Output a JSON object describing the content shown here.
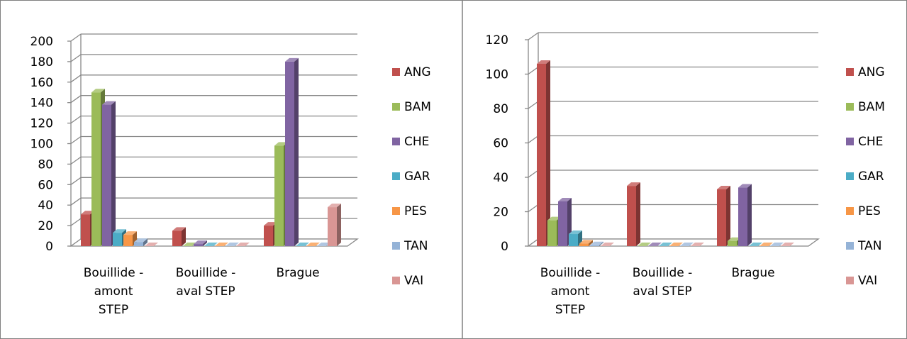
{
  "colors": {
    "ANG": "#C0504D",
    "BAM": "#9BBB59",
    "CHE": "#8064A2",
    "GAR": "#4BACC6",
    "PES": "#F79646",
    "TAN": "#95B3D7",
    "VAI": "#D99694"
  },
  "chart_data": [
    {
      "type": "bar",
      "three_d": true,
      "categories": [
        "Bouillide - amont STEP",
        "Bouillide - aval STEP",
        "Brague"
      ],
      "category_label_lines": [
        [
          "Bouillide -",
          "amont",
          "STEP"
        ],
        [
          "Bouillide -",
          "aval STEP"
        ],
        [
          "Brague"
        ]
      ],
      "ylim": [
        0,
        200
      ],
      "yticks": [
        0,
        20,
        40,
        60,
        80,
        100,
        120,
        140,
        160,
        180,
        200
      ],
      "grid": true,
      "legend_position": "right",
      "series": [
        {
          "name": "ANG",
          "values": [
            31,
            15,
            20
          ]
        },
        {
          "name": "BAM",
          "values": [
            150,
            0,
            98
          ]
        },
        {
          "name": "CHE",
          "values": [
            138,
            2,
            180
          ]
        },
        {
          "name": "GAR",
          "values": [
            13,
            0,
            0
          ]
        },
        {
          "name": "PES",
          "values": [
            11,
            0,
            0
          ]
        },
        {
          "name": "TAN",
          "values": [
            4,
            0,
            0
          ]
        },
        {
          "name": "VAI",
          "values": [
            0,
            0,
            38
          ]
        }
      ]
    },
    {
      "type": "bar",
      "three_d": true,
      "categories": [
        "Bouillide - amont STEP",
        "Bouillide - aval STEP",
        "Brague"
      ],
      "category_label_lines": [
        [
          "Bouillide -",
          "amont",
          "STEP"
        ],
        [
          "Bouillide -",
          "aval STEP"
        ],
        [
          "Brague"
        ]
      ],
      "ylim": [
        0,
        120
      ],
      "yticks": [
        0,
        20,
        40,
        60,
        80,
        100,
        120
      ],
      "grid": true,
      "legend_position": "right",
      "series": [
        {
          "name": "ANG",
          "values": [
            106,
            35,
            33
          ]
        },
        {
          "name": "BAM",
          "values": [
            15,
            0,
            3
          ]
        },
        {
          "name": "CHE",
          "values": [
            26,
            0,
            34
          ]
        },
        {
          "name": "GAR",
          "values": [
            7,
            0,
            0
          ]
        },
        {
          "name": "PES",
          "values": [
            1.5,
            0,
            0
          ]
        },
        {
          "name": "TAN",
          "values": [
            0.5,
            0,
            0
          ]
        },
        {
          "name": "VAI",
          "values": [
            0,
            0,
            0
          ]
        }
      ]
    }
  ]
}
